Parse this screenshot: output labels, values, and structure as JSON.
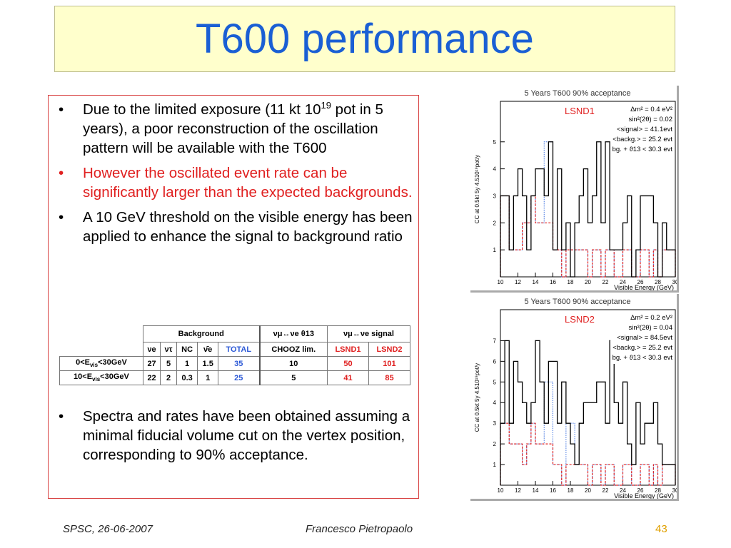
{
  "title": "T600 performance",
  "bullets_top": [
    {
      "text": "Due to the limited exposure (11 kt 10",
      "sup": "19",
      "text2": " pot in 5 years), a poor reconstruction of the oscillation pattern will be available with the T600",
      "color": "#000000"
    },
    {
      "text": "However the oscillated event rate can be significantly larger than the expected backgrounds.",
      "color": "#e02020"
    },
    {
      "text": "A 10 GeV threshold on the visible energy has been applied to enhance the signal to background ratio",
      "color": "#000000"
    }
  ],
  "bullets_bottom": [
    {
      "text": "Spectra and rates have been obtained assuming a minimal fiducial volume cut on the vertex position, corresponding to 90% acceptance."
    }
  ],
  "table": {
    "header_background": "Background",
    "header_chooz": "νμ↔νe θ13",
    "header_signal": "νμ↔νe signal",
    "cols": [
      "νe",
      "ντ",
      "NC",
      "ν̄e",
      "TOTAL",
      "CHOOZ lim.",
      "LSND1",
      "LSND2"
    ],
    "rows": [
      {
        "label": "0<Evis<30GeV",
        "label_a": "0<E",
        "label_sub": "vis",
        "label_b": "<30GeV",
        "values": [
          "27",
          "5",
          "1",
          "1.5",
          "35",
          "10",
          "50",
          "101"
        ]
      },
      {
        "label": "10<Evis<30GeV",
        "label_a": "10<E",
        "label_sub": "vis",
        "label_b": "<30GeV",
        "values": [
          "22",
          "2",
          "0.3",
          "1",
          "25",
          "5",
          "41",
          "85"
        ]
      }
    ]
  },
  "plots": [
    {
      "title": "5 Years T600 90% acceptance",
      "tag": "LSND1",
      "ylabel": "CC at 0.5kt 5y 4.510¹⁹pot/y",
      "xlabel": "Visible Energy (GeV)",
      "legend": [
        "Δm² = 0.4 eV²",
        "sin²(2θ) = 0.02",
        "<signal> = 41.1evt",
        "<backg.> = 25.2 evt",
        "bg. + ϑ13 < 30.3 evt"
      ],
      "yticks": [
        "1",
        "2",
        "3",
        "4",
        "5"
      ],
      "xticks": [
        "10",
        "12",
        "14",
        "16",
        "18",
        "20",
        "22",
        "24",
        "26",
        "28",
        "30"
      ],
      "ylim": [
        0,
        6.5
      ],
      "xlim": [
        10,
        30
      ],
      "bin_width": 0.5,
      "total": [
        3,
        3,
        1,
        3,
        4,
        3,
        1,
        3,
        4,
        4,
        3,
        5,
        1,
        4,
        1,
        2,
        0,
        2,
        3,
        4,
        2,
        3,
        5,
        2,
        5,
        1,
        1,
        1,
        2,
        3,
        0,
        1,
        3,
        3,
        3,
        2,
        0,
        2,
        1,
        1
      ],
      "background": [
        3,
        3,
        1,
        1,
        1,
        2,
        2,
        3,
        2,
        2,
        2,
        2,
        1,
        1,
        0,
        1,
        1,
        1,
        1,
        1,
        0,
        1,
        1,
        0,
        1,
        1,
        0,
        0,
        1,
        1,
        0,
        0,
        1,
        1,
        0,
        1,
        0,
        1,
        1,
        1
      ],
      "signal_extra": [
        0,
        0,
        0,
        0,
        0,
        0,
        0,
        0,
        0,
        0,
        3,
        3,
        0,
        0,
        0,
        0,
        0,
        0,
        0,
        0,
        0,
        0,
        0,
        0,
        0,
        0,
        0,
        0,
        0,
        0,
        0,
        0,
        0,
        0,
        0,
        0,
        0,
        0,
        0,
        0
      ]
    },
    {
      "title": "5 Years T600 90% acceptance",
      "tag": "LSND2",
      "ylabel": "CC at 0.5kt 5y 4.510¹⁹pot/y",
      "xlabel": "Visible Energy (GeV)",
      "legend": [
        "Δm² = 0.2 eV²",
        "sin²(2θ) = 0.04",
        "<signal> = 84.5evt",
        "<backg.> = 25.2 evt",
        "bg. + ϑ13 < 30.3 evt"
      ],
      "yticks": [
        "1",
        "2",
        "3",
        "4",
        "5",
        "6",
        "7"
      ],
      "xticks": [
        "10",
        "12",
        "14",
        "16",
        "18",
        "20",
        "22",
        "24",
        "26",
        "28",
        "30"
      ],
      "ylim": [
        0,
        8.5
      ],
      "xlim": [
        10,
        30
      ],
      "bin_width": 0.5,
      "total": [
        3,
        7,
        3,
        6,
        5,
        4,
        3,
        4,
        7,
        5,
        3,
        6,
        6,
        3,
        5,
        3,
        2,
        1,
        3,
        4,
        4,
        4,
        5,
        5,
        3,
        7,
        4,
        3,
        5,
        2,
        1,
        4,
        2,
        3,
        3,
        4,
        2,
        1,
        1,
        1
      ],
      "background": [
        3,
        3,
        2,
        2,
        2,
        1,
        2,
        3,
        2,
        2,
        2,
        2,
        1,
        1,
        0,
        1,
        1,
        1,
        1,
        1,
        0,
        1,
        1,
        0,
        1,
        1,
        0,
        0,
        1,
        1,
        0,
        0,
        1,
        1,
        0,
        1,
        0,
        1,
        1,
        1
      ],
      "signal_extra": [
        0,
        0,
        0,
        0,
        0,
        0,
        0,
        0,
        0,
        0,
        3,
        3,
        0,
        0,
        0,
        2,
        2,
        0,
        0,
        0,
        0,
        0,
        0,
        0,
        0,
        0,
        0,
        0,
        0,
        0,
        0,
        0,
        0,
        0,
        0,
        0,
        0,
        0,
        0,
        0
      ]
    }
  ],
  "footer": {
    "left": "SPSC, 26-06-2007",
    "center": "Francesco Pietropaolo",
    "page": "43"
  }
}
